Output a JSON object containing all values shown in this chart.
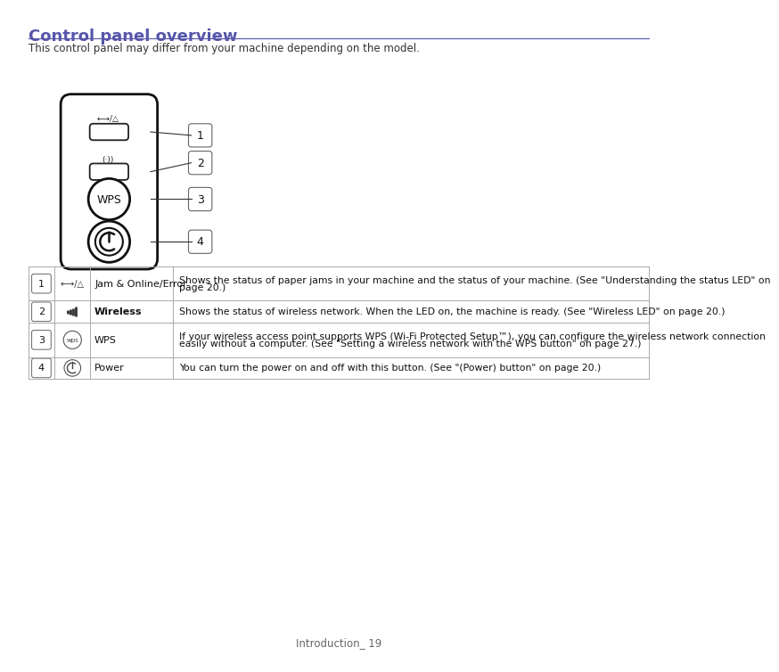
{
  "title": "Control panel overview",
  "title_color": "#5555aa",
  "subtitle": "This control panel may differ from your machine depending on the model.",
  "page_footer": "Introduction_ 19",
  "bg_color": "#ffffff",
  "table_rows": [
    {
      "num": "1",
      "symbol": "jam_error",
      "name": "Jam & Online/Error",
      "name_bold": false,
      "desc": "Shows the status of paper jams in your machine and the status of your machine. (See \"Understanding the status LED\" on\npage 20.)"
    },
    {
      "num": "2",
      "symbol": "wireless_led",
      "name": "Wireless",
      "name_bold": true,
      "desc": "Shows the status of wireless network. When the LED on, the machine is ready. (See \"Wireless LED\" on page 20.)"
    },
    {
      "num": "3",
      "symbol": "wps",
      "name": "WPS",
      "name_bold": false,
      "desc": "If your wireless access point supports WPS (Wi-Fi Protected Setup™), you can configure the wireless network connection\neasily without a computer. (See \"Setting a wireless network with the WPS button\" on page 27.)"
    },
    {
      "num": "4",
      "symbol": "power",
      "name": "Power",
      "name_bold": false,
      "desc": "You can turn the power on and off with this button. (See \"(Power) button\" on page 20.)"
    }
  ],
  "line_color": "#5555aa",
  "table_line_color": "#aaaaaa",
  "text_color": "#333333"
}
